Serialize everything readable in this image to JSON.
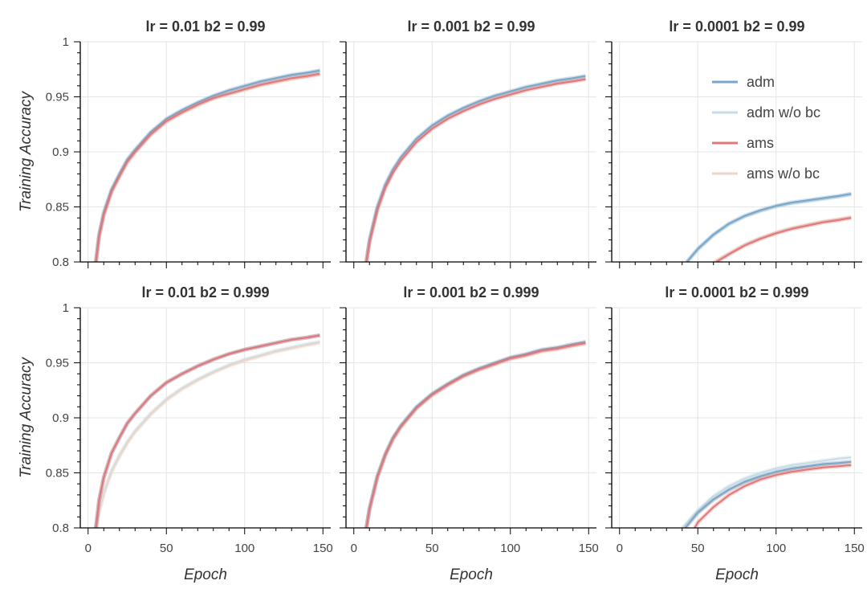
{
  "chart_data": {
    "type": "line",
    "xlabel": "Epoch",
    "ylabel": "Training Accuracy",
    "xlim": [
      -5,
      155
    ],
    "ylim": [
      0.8,
      1.0
    ],
    "xticks": [
      0,
      50,
      100,
      150
    ],
    "yticks": [
      0.8,
      0.85,
      0.9,
      0.95,
      1.0
    ],
    "ytick_labels": [
      "0.8",
      "0.85",
      "0.9",
      "0.95",
      "1"
    ],
    "grid": true,
    "legend": {
      "placement": "top-right",
      "entries": [
        {
          "name": "adm",
          "color": "#7aa6c8"
        },
        {
          "name": "adm w/o bc",
          "color": "#c7dde6"
        },
        {
          "name": "ams",
          "color": "#e0787a"
        },
        {
          "name": "ams w/o bc",
          "color": "#ead7cc"
        }
      ]
    },
    "panels": [
      {
        "title": "lr = 0.01   b2 = 0.99",
        "series": [
          {
            "name": "adm",
            "x": [
              5,
              7,
              10,
              15,
              20,
              25,
              30,
              40,
              50,
              60,
              70,
              80,
              90,
              100,
              110,
              120,
              130,
              140,
              148
            ],
            "y": [
              0.8,
              0.825,
              0.845,
              0.866,
              0.88,
              0.893,
              0.902,
              0.918,
              0.93,
              0.938,
              0.945,
              0.951,
              0.956,
              0.96,
              0.964,
              0.967,
              0.97,
              0.972,
              0.974
            ]
          },
          {
            "name": "adm w/o bc",
            "x": [
              5,
              7,
              10,
              15,
              20,
              25,
              30,
              40,
              50,
              60,
              70,
              80,
              90,
              100,
              110,
              120,
              130,
              140,
              148
            ],
            "y": [
              0.8,
              0.824,
              0.844,
              0.865,
              0.879,
              0.892,
              0.901,
              0.917,
              0.929,
              0.937,
              0.944,
              0.95,
              0.955,
              0.959,
              0.963,
              0.966,
              0.969,
              0.971,
              0.973
            ]
          },
          {
            "name": "ams",
            "x": [
              5,
              7,
              10,
              15,
              20,
              25,
              30,
              40,
              50,
              60,
              70,
              80,
              90,
              100,
              110,
              120,
              130,
              140,
              148
            ],
            "y": [
              0.8,
              0.823,
              0.843,
              0.864,
              0.878,
              0.891,
              0.9,
              0.916,
              0.928,
              0.936,
              0.943,
              0.949,
              0.953,
              0.957,
              0.961,
              0.964,
              0.967,
              0.969,
              0.971
            ]
          },
          {
            "name": "ams w/o bc",
            "x": [
              5,
              7,
              10,
              15,
              20,
              25,
              30,
              40,
              50,
              60,
              70,
              80,
              90,
              100,
              110,
              120,
              130,
              140,
              148
            ],
            "y": [
              0.8,
              0.822,
              0.842,
              0.863,
              0.877,
              0.89,
              0.899,
              0.915,
              0.927,
              0.935,
              0.942,
              0.948,
              0.952,
              0.956,
              0.96,
              0.963,
              0.966,
              0.968,
              0.97
            ]
          }
        ]
      },
      {
        "title": "lr = 0.001   b2 = 0.99",
        "series": [
          {
            "name": "adm",
            "x": [
              8,
              10,
              15,
              20,
              25,
              30,
              40,
              50,
              60,
              70,
              80,
              90,
              100,
              110,
              120,
              130,
              140,
              148
            ],
            "y": [
              0.8,
              0.82,
              0.85,
              0.87,
              0.884,
              0.895,
              0.912,
              0.924,
              0.933,
              0.94,
              0.946,
              0.951,
              0.955,
              0.959,
              0.962,
              0.965,
              0.967,
              0.969
            ]
          },
          {
            "name": "adm w/o bc",
            "x": [
              8,
              10,
              15,
              20,
              25,
              30,
              40,
              50,
              60,
              70,
              80,
              90,
              100,
              110,
              120,
              130,
              140,
              148
            ],
            "y": [
              0.8,
              0.819,
              0.849,
              0.869,
              0.883,
              0.894,
              0.911,
              0.923,
              0.932,
              0.939,
              0.945,
              0.95,
              0.954,
              0.958,
              0.961,
              0.964,
              0.966,
              0.968
            ]
          },
          {
            "name": "ams",
            "x": [
              8,
              10,
              15,
              20,
              25,
              30,
              40,
              50,
              60,
              70,
              80,
              90,
              100,
              110,
              120,
              130,
              140,
              148
            ],
            "y": [
              0.8,
              0.818,
              0.847,
              0.867,
              0.881,
              0.892,
              0.909,
              0.921,
              0.93,
              0.937,
              0.943,
              0.948,
              0.952,
              0.956,
              0.959,
              0.962,
              0.964,
              0.966
            ]
          },
          {
            "name": "ams w/o bc",
            "x": [
              8,
              10,
              15,
              20,
              25,
              30,
              40,
              50,
              60,
              70,
              80,
              90,
              100,
              110,
              120,
              130,
              140,
              148
            ],
            "y": [
              0.8,
              0.818,
              0.848,
              0.868,
              0.882,
              0.893,
              0.91,
              0.922,
              0.931,
              0.938,
              0.944,
              0.949,
              0.953,
              0.957,
              0.96,
              0.963,
              0.965,
              0.967
            ]
          }
        ]
      },
      {
        "title": "lr = 0.0001   b2 = 0.99",
        "series": [
          {
            "name": "adm",
            "x": [
              43,
              50,
              60,
              70,
              80,
              90,
              100,
              110,
              120,
              130,
              140,
              148
            ],
            "y": [
              0.8,
              0.812,
              0.825,
              0.835,
              0.842,
              0.847,
              0.851,
              0.854,
              0.856,
              0.858,
              0.86,
              0.862
            ]
          },
          {
            "name": "adm w/o bc",
            "x": [
              43,
              50,
              60,
              70,
              80,
              90,
              100,
              110,
              120,
              130,
              140,
              148
            ],
            "y": [
              0.8,
              0.811,
              0.824,
              0.834,
              0.841,
              0.846,
              0.85,
              0.853,
              0.855,
              0.857,
              0.859,
              0.861
            ]
          },
          {
            "name": "ams",
            "x": [
              62,
              70,
              80,
              90,
              100,
              110,
              120,
              130,
              140,
              148
            ],
            "y": [
              0.8,
              0.807,
              0.815,
              0.821,
              0.826,
              0.83,
              0.833,
              0.836,
              0.838,
              0.84
            ]
          },
          {
            "name": "ams w/o bc",
            "x": [
              60,
              70,
              80,
              90,
              100,
              110,
              120,
              130,
              140,
              148
            ],
            "y": [
              0.8,
              0.808,
              0.816,
              0.822,
              0.827,
              0.831,
              0.834,
              0.837,
              0.839,
              0.841
            ]
          }
        ]
      },
      {
        "title": "lr = 0.01   b2 = 0.999",
        "series": [
          {
            "name": "adm",
            "x": [
              5,
              7,
              10,
              15,
              20,
              25,
              30,
              40,
              50,
              60,
              70,
              80,
              90,
              100,
              110,
              120,
              130,
              140,
              148
            ],
            "y": [
              0.8,
              0.825,
              0.846,
              0.868,
              0.882,
              0.895,
              0.904,
              0.92,
              0.932,
              0.94,
              0.947,
              0.953,
              0.958,
              0.962,
              0.965,
              0.968,
              0.971,
              0.973,
              0.975
            ]
          },
          {
            "name": "adm w/o bc",
            "x": [
              5,
              7,
              10,
              15,
              20,
              25,
              30,
              40,
              50,
              60,
              70,
              80,
              90,
              100,
              110,
              120,
              130,
              140,
              148
            ],
            "y": [
              0.8,
              0.815,
              0.832,
              0.852,
              0.866,
              0.878,
              0.888,
              0.904,
              0.917,
              0.927,
              0.935,
              0.942,
              0.948,
              0.953,
              0.957,
              0.961,
              0.964,
              0.967,
              0.969
            ]
          },
          {
            "name": "ams",
            "x": [
              5,
              7,
              10,
              15,
              20,
              25,
              30,
              40,
              50,
              60,
              70,
              80,
              90,
              100,
              110,
              120,
              130,
              140,
              148
            ],
            "y": [
              0.8,
              0.825,
              0.846,
              0.868,
              0.882,
              0.895,
              0.904,
              0.92,
              0.932,
              0.94,
              0.947,
              0.953,
              0.958,
              0.962,
              0.965,
              0.968,
              0.971,
              0.973,
              0.975
            ]
          },
          {
            "name": "ams w/o bc",
            "x": [
              5,
              7,
              10,
              15,
              20,
              25,
              30,
              40,
              50,
              60,
              70,
              80,
              90,
              100,
              110,
              120,
              130,
              140,
              148
            ],
            "y": [
              0.8,
              0.814,
              0.831,
              0.851,
              0.865,
              0.877,
              0.887,
              0.903,
              0.916,
              0.926,
              0.934,
              0.941,
              0.947,
              0.952,
              0.956,
              0.96,
              0.963,
              0.966,
              0.968
            ]
          }
        ]
      },
      {
        "title": "lr = 0.001   b2 = 0.999",
        "series": [
          {
            "name": "adm",
            "x": [
              8,
              10,
              15,
              20,
              25,
              30,
              40,
              50,
              60,
              70,
              80,
              90,
              100,
              110,
              120,
              130,
              140,
              148
            ],
            "y": [
              0.8,
              0.818,
              0.847,
              0.867,
              0.882,
              0.893,
              0.91,
              0.922,
              0.931,
              0.939,
              0.945,
              0.95,
              0.955,
              0.958,
              0.962,
              0.964,
              0.967,
              0.969
            ]
          },
          {
            "name": "adm w/o bc",
            "x": [
              8,
              10,
              15,
              20,
              25,
              30,
              40,
              50,
              60,
              70,
              80,
              90,
              100,
              110,
              120,
              130,
              140,
              148
            ],
            "y": [
              0.8,
              0.817,
              0.846,
              0.866,
              0.881,
              0.892,
              0.909,
              0.921,
              0.93,
              0.938,
              0.944,
              0.949,
              0.954,
              0.957,
              0.961,
              0.963,
              0.966,
              0.968
            ]
          },
          {
            "name": "ams",
            "x": [
              8,
              10,
              15,
              20,
              25,
              30,
              40,
              50,
              60,
              70,
              80,
              90,
              100,
              110,
              120,
              130,
              140,
              148
            ],
            "y": [
              0.8,
              0.817,
              0.846,
              0.866,
              0.881,
              0.892,
              0.909,
              0.921,
              0.93,
              0.938,
              0.944,
              0.949,
              0.954,
              0.957,
              0.961,
              0.963,
              0.966,
              0.968
            ]
          },
          {
            "name": "ams w/o bc",
            "x": [
              8,
              10,
              15,
              20,
              25,
              30,
              40,
              50,
              60,
              70,
              80,
              90,
              100,
              110,
              120,
              130,
              140,
              148
            ],
            "y": [
              0.8,
              0.816,
              0.845,
              0.865,
              0.88,
              0.891,
              0.908,
              0.92,
              0.929,
              0.937,
              0.943,
              0.948,
              0.953,
              0.956,
              0.96,
              0.962,
              0.965,
              0.967
            ]
          }
        ]
      },
      {
        "title": "lr = 0.0001   b2 = 0.999",
        "series": [
          {
            "name": "adm",
            "x": [
              42,
              50,
              60,
              70,
              80,
              90,
              100,
              110,
              120,
              130,
              140,
              148
            ],
            "y": [
              0.8,
              0.814,
              0.826,
              0.835,
              0.842,
              0.847,
              0.851,
              0.854,
              0.856,
              0.858,
              0.859,
              0.86
            ]
          },
          {
            "name": "adm w/o bc",
            "x": [
              40,
              50,
              60,
              70,
              80,
              90,
              100,
              110,
              120,
              130,
              140,
              148
            ],
            "y": [
              0.8,
              0.816,
              0.829,
              0.838,
              0.845,
              0.85,
              0.854,
              0.857,
              0.859,
              0.861,
              0.863,
              0.864
            ]
          },
          {
            "name": "ams",
            "x": [
              48,
              50,
              60,
              70,
              80,
              90,
              100,
              110,
              120,
              130,
              140,
              148
            ],
            "y": [
              0.8,
              0.805,
              0.819,
              0.83,
              0.838,
              0.844,
              0.848,
              0.851,
              0.853,
              0.855,
              0.856,
              0.857
            ]
          },
          {
            "name": "ams w/o bc",
            "x": [
              42,
              50,
              60,
              70,
              80,
              90,
              100,
              110,
              120,
              130,
              140,
              148
            ],
            "y": [
              0.8,
              0.813,
              0.825,
              0.834,
              0.841,
              0.846,
              0.85,
              0.853,
              0.855,
              0.857,
              0.859,
              0.86
            ]
          }
        ]
      }
    ]
  }
}
